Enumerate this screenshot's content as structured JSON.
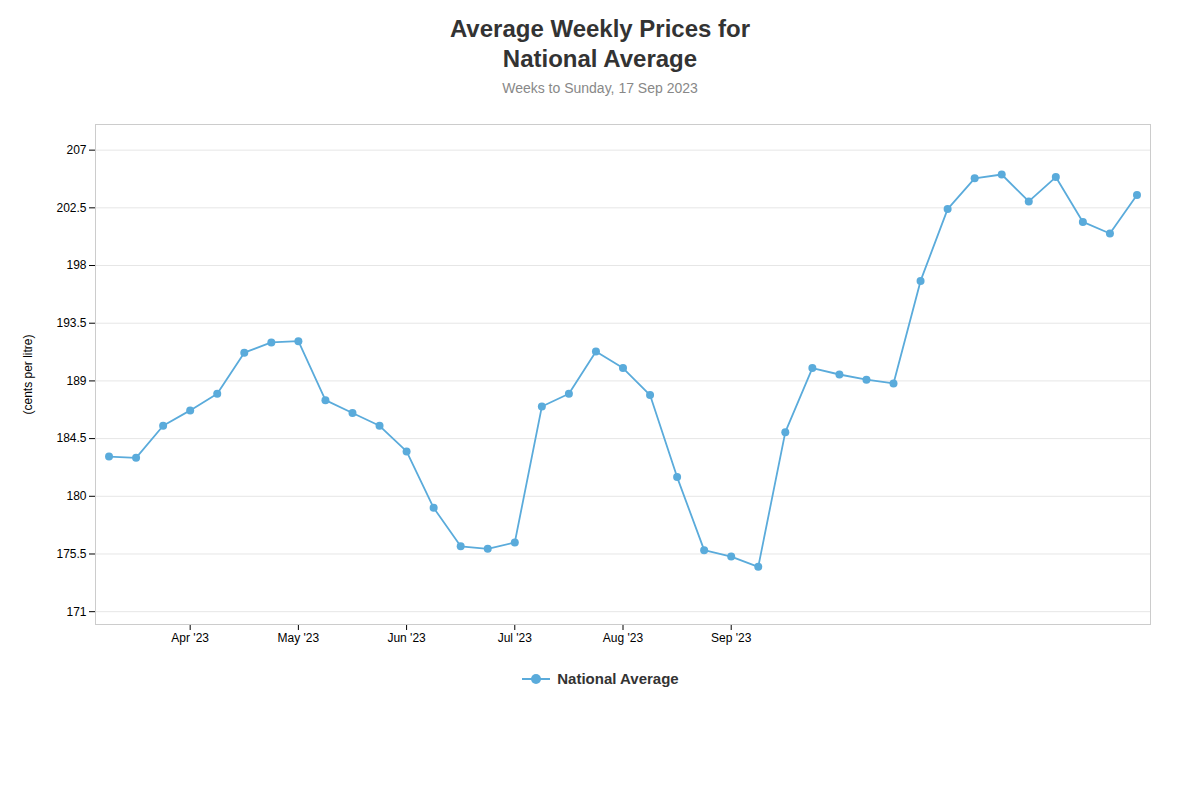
{
  "chart_data": {
    "type": "line",
    "title": "Average Weekly Prices for\nNational Average",
    "subtitle": "Weeks to Sunday, 17 Sep 2023",
    "ylabel": "(cents per litre)",
    "x": [
      0,
      1,
      2,
      3,
      4,
      5,
      6,
      7,
      8,
      9,
      10,
      11,
      12,
      13,
      14,
      15,
      16,
      17,
      18,
      19,
      20,
      21,
      22,
      23,
      24,
      25,
      26,
      27,
      28,
      29,
      30,
      31,
      32,
      33,
      34,
      35,
      36,
      37,
      38
    ],
    "series": [
      {
        "name": "National Average",
        "color": "#5aabdb",
        "marker": "o",
        "values": [
          183.1,
          183.0,
          185.5,
          186.7,
          188.0,
          191.2,
          192.0,
          192.1,
          187.5,
          186.5,
          185.5,
          183.5,
          179.1,
          176.1,
          175.9,
          176.4,
          187.0,
          188.0,
          191.3,
          190.0,
          187.9,
          181.5,
          175.8,
          175.3,
          174.5,
          185.0,
          190.0,
          189.5,
          189.1,
          188.8,
          196.8,
          202.4,
          204.8,
          205.1,
          203.0,
          204.9,
          201.4,
          200.5,
          203.5
        ]
      }
    ],
    "xlim": [
      -0.5,
      38.5
    ],
    "xticks": [
      {
        "value": 3,
        "label": "Apr '23"
      },
      {
        "value": 7,
        "label": "May '23"
      },
      {
        "value": 11,
        "label": "Jun '23"
      },
      {
        "value": 15,
        "label": "Jul '23"
      },
      {
        "value": 19,
        "label": "Aug '23"
      },
      {
        "value": 23,
        "label": "Sep '23"
      }
    ],
    "ylim": [
      170,
      209
    ],
    "yticks": [
      171,
      175.5,
      180,
      184.5,
      189,
      193.5,
      198,
      202.5,
      207
    ],
    "grid": true,
    "legend": "bottom"
  }
}
